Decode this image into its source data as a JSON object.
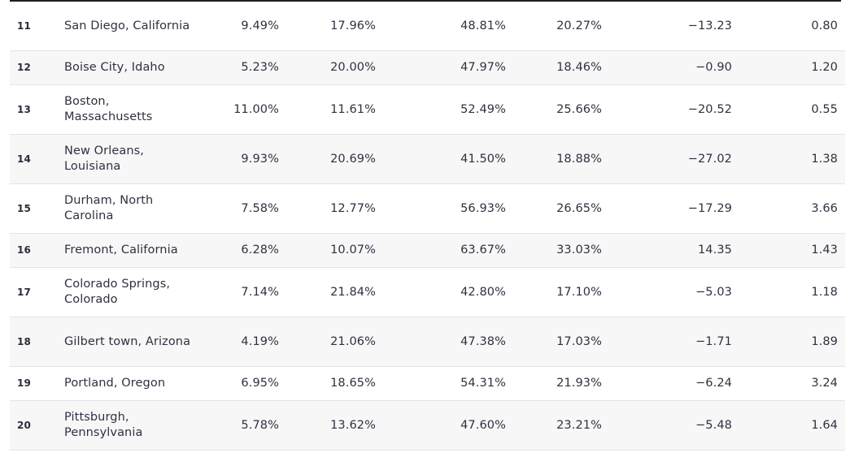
{
  "table": {
    "rows": [
      {
        "rank": "11",
        "city": "San Diego, California",
        "c1": "9.49%",
        "c2": "17.96%",
        "c3": "48.81%",
        "c4": "20.27%",
        "c5": "−13.23",
        "c6": "0.80",
        "height": "tall"
      },
      {
        "rank": "12",
        "city": "Boise City, Idaho",
        "c1": "5.23%",
        "c2": "20.00%",
        "c3": "47.97%",
        "c4": "18.46%",
        "c5": "−0.90",
        "c6": "1.20",
        "height": "short"
      },
      {
        "rank": "13",
        "city": "Boston, Massachusetts",
        "c1": "11.00%",
        "c2": "11.61%",
        "c3": "52.49%",
        "c4": "25.66%",
        "c5": "−20.52",
        "c6": "0.55",
        "height": "tall"
      },
      {
        "rank": "14",
        "city": "New Orleans, Louisiana",
        "c1": "9.93%",
        "c2": "20.69%",
        "c3": "41.50%",
        "c4": "18.88%",
        "c5": "−27.02",
        "c6": "1.38",
        "height": "tall"
      },
      {
        "rank": "15",
        "city": "Durham, North Carolina",
        "c1": "7.58%",
        "c2": "12.77%",
        "c3": "56.93%",
        "c4": "26.65%",
        "c5": "−17.29",
        "c6": "3.66",
        "height": "tall"
      },
      {
        "rank": "16",
        "city": "Fremont, California",
        "c1": "6.28%",
        "c2": "10.07%",
        "c3": "63.67%",
        "c4": "33.03%",
        "c5": "14.35",
        "c6": "1.43",
        "height": "short"
      },
      {
        "rank": "17",
        "city": "Colorado Springs, Colorado",
        "c1": "7.14%",
        "c2": "21.84%",
        "c3": "42.80%",
        "c4": "17.10%",
        "c5": "−5.03",
        "c6": "1.18",
        "height": "tall"
      },
      {
        "rank": "18",
        "city": "Gilbert town, Arizona",
        "c1": "4.19%",
        "c2": "21.06%",
        "c3": "47.38%",
        "c4": "17.03%",
        "c5": "−1.71",
        "c6": "1.89",
        "height": "tall"
      },
      {
        "rank": "19",
        "city": "Portland, Oregon",
        "c1": "6.95%",
        "c2": "18.65%",
        "c3": "54.31%",
        "c4": "21.93%",
        "c5": "−6.24",
        "c6": "3.24",
        "height": "short"
      },
      {
        "rank": "20",
        "city": "Pittsburgh, Pennsylvania",
        "c1": "5.78%",
        "c2": "13.62%",
        "c3": "47.60%",
        "c4": "23.21%",
        "c5": "−5.48",
        "c6": "1.64",
        "height": "tall"
      }
    ]
  }
}
